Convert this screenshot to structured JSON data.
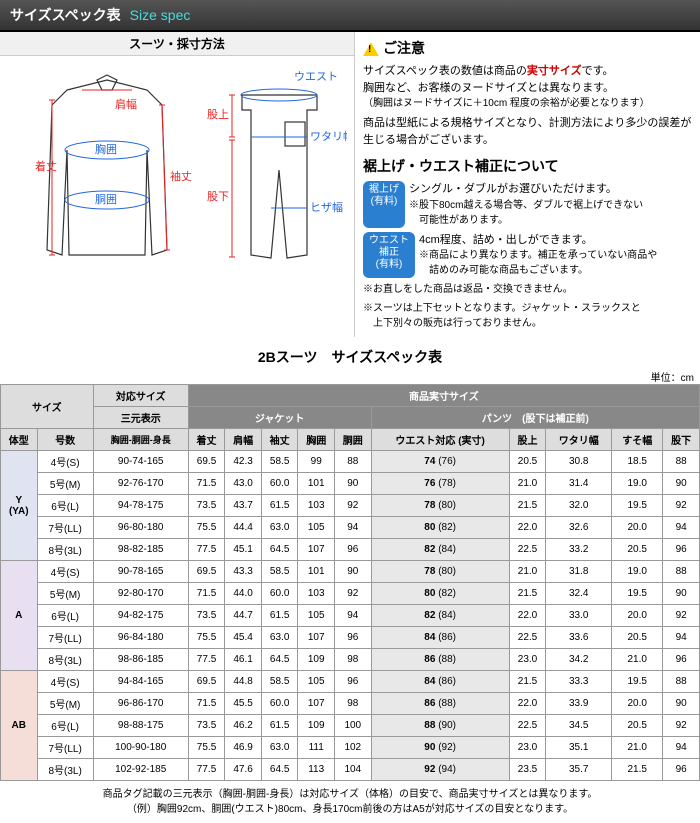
{
  "header": {
    "jp": "サイズスペック表",
    "en": "Size spec"
  },
  "diagram": {
    "title": "スーツ・採寸方法",
    "jacket_labels": {
      "kitake": "着丈",
      "katahaba": "肩幅",
      "kyoi": "胸囲",
      "doui": "胴囲",
      "sodetake": "袖丈"
    },
    "pants_labels": {
      "waist": "ウエスト",
      "mataue": "股上",
      "watari": "ワタリ幅",
      "hiza": "ヒザ幅",
      "matashita": "股下"
    }
  },
  "notice": {
    "heading": "ご注意",
    "line1a": "サイズスペック表の数値は商品の",
    "line1b": "実寸サイズ",
    "line1c": "です。",
    "line2": "胸囲など、お客様のヌードサイズとは異なります。",
    "line3": "（胸囲はヌードサイズに＋10cm 程度の余裕が必要となります）",
    "line4": "商品は型紙による規格サイズとなり、計測方法により多少の誤差が生じる場合がございます。",
    "alt_heading": "裾上げ・ウエスト補正について",
    "badge1": "裾上げ\n(有料)",
    "badge1_text": "シングル・ダブルがお選びいただけます。",
    "badge1_sub": "※股下80cm越える場合等、ダブルで裾上げできない\n　可能性があります。",
    "badge2": "ウエスト\n補正\n(有料)",
    "badge2_text": "4cm程度、詰め・出しができます。",
    "badge2_sub": "※商品により異なります。補正を承っていない商品や\n　詰めのみ可能な商品もございます。",
    "note1": "※お直しをした商品は返品・交換できません。",
    "note2": "※スーツは上下セットとなります。ジャケット・スラックスと\n　上下別々の販売は行っておりません。"
  },
  "table": {
    "title": "2Bスーツ　サイズスペック表",
    "unit": "単位：cm",
    "headers": {
      "size": "サイズ",
      "fit": "対応サイズ",
      "actual": "商品実寸サイズ",
      "taikei": "体型",
      "gosu": "号数",
      "sangen": "三元表示",
      "sangen_sub": "胸囲-胴囲-身長",
      "jacket": "ジャケット",
      "pants": "パンツ　(股下は補正前)",
      "j": [
        "着丈",
        "肩幅",
        "袖丈",
        "胸囲",
        "胴囲"
      ],
      "p": [
        "ウエスト対応 (実寸)",
        "股上",
        "ワタリ幅",
        "すそ幅",
        "股下"
      ]
    },
    "groups": [
      {
        "name": "Y\n(YA)",
        "cls": "group-y",
        "rows": [
          {
            "g": "4号(S)",
            "s": "90-74-165",
            "j": [
              "69.5",
              "42.3",
              "58.5",
              "99",
              "88"
            ],
            "w": "74",
            "wr": "(76)",
            "p": [
              "20.5",
              "30.8",
              "18.5",
              "88"
            ]
          },
          {
            "g": "5号(M)",
            "s": "92-76-170",
            "j": [
              "71.5",
              "43.0",
              "60.0",
              "101",
              "90"
            ],
            "w": "76",
            "wr": "(78)",
            "p": [
              "21.0",
              "31.4",
              "19.0",
              "90"
            ]
          },
          {
            "g": "6号(L)",
            "s": "94-78-175",
            "j": [
              "73.5",
              "43.7",
              "61.5",
              "103",
              "92"
            ],
            "w": "78",
            "wr": "(80)",
            "p": [
              "21.5",
              "32.0",
              "19.5",
              "92"
            ]
          },
          {
            "g": "7号(LL)",
            "s": "96-80-180",
            "j": [
              "75.5",
              "44.4",
              "63.0",
              "105",
              "94"
            ],
            "w": "80",
            "wr": "(82)",
            "p": [
              "22.0",
              "32.6",
              "20.0",
              "94"
            ]
          },
          {
            "g": "8号(3L)",
            "s": "98-82-185",
            "j": [
              "77.5",
              "45.1",
              "64.5",
              "107",
              "96"
            ],
            "w": "82",
            "wr": "(84)",
            "p": [
              "22.5",
              "33.2",
              "20.5",
              "96"
            ]
          }
        ]
      },
      {
        "name": "A",
        "cls": "group-a",
        "rows": [
          {
            "g": "4号(S)",
            "s": "90-78-165",
            "j": [
              "69.5",
              "43.3",
              "58.5",
              "101",
              "90"
            ],
            "w": "78",
            "wr": "(80)",
            "p": [
              "21.0",
              "31.8",
              "19.0",
              "88"
            ]
          },
          {
            "g": "5号(M)",
            "s": "92-80-170",
            "j": [
              "71.5",
              "44.0",
              "60.0",
              "103",
              "92"
            ],
            "w": "80",
            "wr": "(82)",
            "p": [
              "21.5",
              "32.4",
              "19.5",
              "90"
            ]
          },
          {
            "g": "6号(L)",
            "s": "94-82-175",
            "j": [
              "73.5",
              "44.7",
              "61.5",
              "105",
              "94"
            ],
            "w": "82",
            "wr": "(84)",
            "p": [
              "22.0",
              "33.0",
              "20.0",
              "92"
            ]
          },
          {
            "g": "7号(LL)",
            "s": "96-84-180",
            "j": [
              "75.5",
              "45.4",
              "63.0",
              "107",
              "96"
            ],
            "w": "84",
            "wr": "(86)",
            "p": [
              "22.5",
              "33.6",
              "20.5",
              "94"
            ]
          },
          {
            "g": "8号(3L)",
            "s": "98-86-185",
            "j": [
              "77.5",
              "46.1",
              "64.5",
              "109",
              "98"
            ],
            "w": "86",
            "wr": "(88)",
            "p": [
              "23.0",
              "34.2",
              "21.0",
              "96"
            ]
          }
        ]
      },
      {
        "name": "AB",
        "cls": "group-ab",
        "rows": [
          {
            "g": "4号(S)",
            "s": "94-84-165",
            "j": [
              "69.5",
              "44.8",
              "58.5",
              "105",
              "96"
            ],
            "w": "84",
            "wr": "(86)",
            "p": [
              "21.5",
              "33.3",
              "19.5",
              "88"
            ]
          },
          {
            "g": "5号(M)",
            "s": "96-86-170",
            "j": [
              "71.5",
              "45.5",
              "60.0",
              "107",
              "98"
            ],
            "w": "86",
            "wr": "(88)",
            "p": [
              "22.0",
              "33.9",
              "20.0",
              "90"
            ]
          },
          {
            "g": "6号(L)",
            "s": "98-88-175",
            "j": [
              "73.5",
              "46.2",
              "61.5",
              "109",
              "100"
            ],
            "w": "88",
            "wr": "(90)",
            "p": [
              "22.5",
              "34.5",
              "20.5",
              "92"
            ]
          },
          {
            "g": "7号(LL)",
            "s": "100-90-180",
            "j": [
              "75.5",
              "46.9",
              "63.0",
              "111",
              "102"
            ],
            "w": "90",
            "wr": "(92)",
            "p": [
              "23.0",
              "35.1",
              "21.0",
              "94"
            ]
          },
          {
            "g": "8号(3L)",
            "s": "102-92-185",
            "j": [
              "77.5",
              "47.6",
              "64.5",
              "113",
              "104"
            ],
            "w": "92",
            "wr": "(94)",
            "p": [
              "23.5",
              "35.7",
              "21.5",
              "96"
            ]
          }
        ]
      }
    ]
  },
  "footnote": {
    "l1": "商品タグ記載の三元表示（胸囲-胴囲-身長）は対応サイズ（体格）の目安で、商品実寸サイズとは異なります。",
    "l2": "（例）胸囲92cm、胴囲(ウエスト)80cm、身長170cm前後の方はA5が対応サイズの目安となります。"
  }
}
